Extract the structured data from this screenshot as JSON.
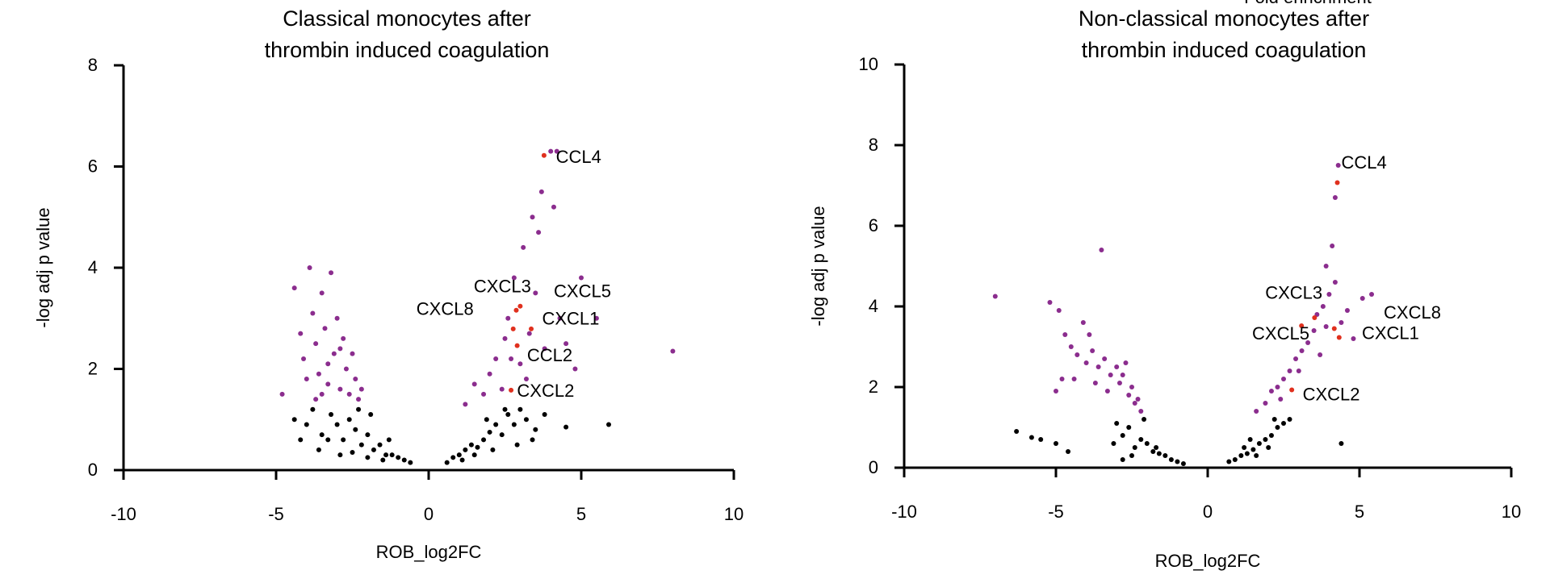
{
  "note": "Fold enrichment",
  "chart_data": [
    {
      "type": "scatter",
      "title": [
        "Classical monocytes after",
        "thrombin induced coagulation"
      ],
      "xlabel": "ROB_log2FC",
      "ylabel": "-log adj p value",
      "xlim": [
        -10,
        10
      ],
      "xticks": [
        -10,
        -5,
        0,
        5,
        10
      ],
      "ylim": [
        0,
        8
      ],
      "yticks": [
        0,
        2,
        4,
        6,
        8
      ],
      "series": [
        {
          "color": "#000000",
          "x": [
            -4.4,
            -4.0,
            -3.8,
            -3.5,
            -3.2,
            -3.0,
            -2.8,
            -2.6,
            -2.4,
            -2.2,
            -2.0,
            -1.8,
            -1.6,
            -1.4,
            -1.2,
            -1.0,
            -0.8,
            -0.6,
            -3.6,
            -2.9,
            -2.5,
            -2.0,
            -1.5,
            -3.3,
            -4.2,
            -2.3,
            -1.9,
            -1.3,
            0.6,
            0.8,
            1.0,
            1.2,
            1.4,
            1.6,
            1.8,
            2.0,
            2.2,
            2.4,
            2.6,
            2.8,
            3.0,
            3.2,
            3.5,
            3.8,
            4.5,
            5.9,
            1.1,
            1.5,
            2.1,
            2.9,
            3.4,
            1.9,
            2.5
          ],
          "values": [
            1.0,
            0.9,
            1.2,
            0.7,
            1.1,
            0.9,
            0.6,
            1.0,
            0.8,
            0.5,
            0.7,
            0.4,
            0.5,
            0.3,
            0.3,
            0.25,
            0.2,
            0.15,
            0.4,
            0.3,
            0.35,
            0.25,
            0.2,
            0.6,
            0.6,
            1.2,
            1.1,
            0.6,
            0.15,
            0.25,
            0.3,
            0.4,
            0.5,
            0.45,
            0.6,
            0.75,
            0.9,
            0.7,
            1.1,
            0.9,
            1.2,
            1.0,
            0.8,
            1.1,
            0.85,
            0.9,
            0.2,
            0.3,
            0.4,
            0.5,
            0.6,
            1.0,
            1.2
          ]
        },
        {
          "color": "#8b2d8e",
          "x": [
            -4.8,
            -4.4,
            -4.1,
            -3.9,
            -3.8,
            -3.7,
            -3.6,
            -3.5,
            -3.4,
            -3.3,
            -3.2,
            -3.1,
            -3.0,
            -2.9,
            -2.8,
            -2.7,
            -2.6,
            -2.5,
            -2.4,
            -2.3,
            -2.2,
            -3.7,
            -4.0,
            -3.3,
            -2.9,
            -4.2,
            -3.5,
            1.2,
            1.5,
            1.8,
            2.0,
            2.2,
            2.4,
            2.5,
            2.6,
            2.8,
            3.0,
            3.1,
            3.2,
            3.4,
            3.5,
            3.6,
            3.7,
            3.8,
            4.0,
            4.1,
            4.2,
            4.5,
            4.8,
            5.0,
            5.5,
            8.0,
            2.7,
            3.3,
            4.3
          ],
          "values": [
            1.5,
            3.6,
            2.2,
            4.0,
            3.1,
            2.5,
            1.9,
            3.5,
            2.8,
            1.7,
            3.9,
            2.3,
            3.0,
            1.6,
            2.6,
            2.0,
            1.5,
            2.3,
            1.8,
            1.4,
            1.6,
            1.4,
            1.8,
            2.1,
            2.4,
            2.7,
            1.5,
            1.3,
            1.7,
            1.5,
            1.9,
            2.2,
            1.6,
            2.6,
            3.0,
            3.8,
            2.1,
            4.4,
            1.8,
            5.0,
            3.5,
            4.7,
            5.5,
            2.4,
            6.3,
            5.2,
            6.3,
            2.5,
            2.0,
            3.8,
            3.0,
            2.35,
            2.2,
            2.7,
            3.0
          ]
        },
        {
          "color": "#e0301e",
          "labels": [
            "CCL4",
            "CXCL3",
            "CXCL5",
            "CXCL8",
            "CXCL1",
            "CCL2",
            "CXCL2"
          ],
          "x": [
            3.78,
            2.87,
            3.0,
            2.77,
            3.36,
            2.9,
            2.7
          ],
          "values": [
            6.22,
            3.16,
            3.24,
            2.79,
            2.79,
            2.46,
            1.58
          ]
        }
      ]
    },
    {
      "type": "scatter",
      "title": [
        "Non-classical monocytes after",
        "thrombin induced coagulation"
      ],
      "xlabel": "ROB_log2FC",
      "ylabel": "-log adj p value",
      "xlim": [
        -10,
        10
      ],
      "xticks": [
        -10,
        -5,
        0,
        5,
        10
      ],
      "ylim": [
        0,
        10
      ],
      "yticks": [
        0,
        2,
        4,
        6,
        8,
        10
      ],
      "series": [
        {
          "color": "#000000",
          "x": [
            -6.3,
            -5.8,
            -5.5,
            -5.0,
            -4.6,
            -3.0,
            -2.8,
            -2.6,
            -2.4,
            -2.2,
            -2.0,
            -1.8,
            -1.6,
            -1.4,
            -1.2,
            -1.0,
            -0.8,
            -2.8,
            -2.5,
            -3.1,
            -2.1,
            -1.7,
            0.7,
            0.9,
            1.1,
            1.3,
            1.5,
            1.7,
            1.9,
            2.1,
            2.3,
            2.5,
            2.7,
            1.2,
            1.6,
            2.0,
            4.4,
            2.2,
            1.4
          ],
          "values": [
            0.9,
            0.75,
            0.7,
            0.6,
            0.4,
            1.1,
            0.8,
            1.0,
            0.5,
            0.7,
            0.6,
            0.4,
            0.35,
            0.3,
            0.2,
            0.15,
            0.1,
            0.2,
            0.3,
            0.6,
            1.2,
            0.5,
            0.15,
            0.2,
            0.3,
            0.35,
            0.45,
            0.6,
            0.7,
            0.8,
            1.0,
            1.1,
            1.2,
            0.5,
            0.3,
            0.5,
            0.6,
            1.2,
            0.7
          ]
        },
        {
          "color": "#8b2d8e",
          "x": [
            -7.0,
            -5.2,
            -4.9,
            -4.7,
            -4.5,
            -4.3,
            -4.1,
            -4.0,
            -3.8,
            -3.6,
            -3.5,
            -3.4,
            -3.2,
            -3.0,
            -2.9,
            -2.8,
            -2.6,
            -2.5,
            -2.4,
            -2.3,
            -2.2,
            -5.0,
            -4.8,
            -4.4,
            -3.7,
            -3.3,
            -2.7,
            -3.9,
            1.6,
            1.9,
            2.1,
            2.3,
            2.5,
            2.7,
            2.9,
            3.1,
            3.3,
            3.5,
            3.7,
            3.8,
            3.9,
            4.0,
            4.1,
            4.2,
            4.3,
            4.4,
            4.6,
            4.8,
            5.1,
            5.4,
            3.6,
            3.0,
            2.4,
            4.2,
            3.9
          ],
          "values": [
            4.25,
            4.1,
            3.9,
            3.3,
            3.0,
            2.8,
            3.6,
            2.6,
            2.9,
            2.5,
            5.4,
            2.7,
            2.3,
            2.5,
            2.1,
            2.3,
            1.8,
            2.0,
            1.6,
            1.7,
            1.4,
            1.9,
            2.2,
            2.2,
            2.1,
            1.9,
            2.6,
            3.3,
            1.4,
            1.6,
            1.9,
            2.0,
            2.2,
            2.4,
            2.7,
            2.9,
            3.1,
            3.4,
            2.8,
            4.0,
            3.5,
            4.3,
            5.5,
            4.6,
            7.5,
            3.6,
            3.9,
            3.2,
            4.2,
            4.3,
            3.8,
            2.4,
            1.7,
            6.7,
            5.0
          ]
        },
        {
          "color": "#e0301e",
          "labels": [
            "CCL4",
            "CXCL3",
            "CXCL5",
            "CXCL8",
            "CXCL1",
            "CXCL2"
          ],
          "x": [
            4.27,
            3.52,
            3.09,
            4.17,
            4.33,
            2.77
          ],
          "values": [
            7.07,
            3.72,
            3.52,
            3.45,
            3.23,
            1.93
          ]
        }
      ]
    }
  ]
}
